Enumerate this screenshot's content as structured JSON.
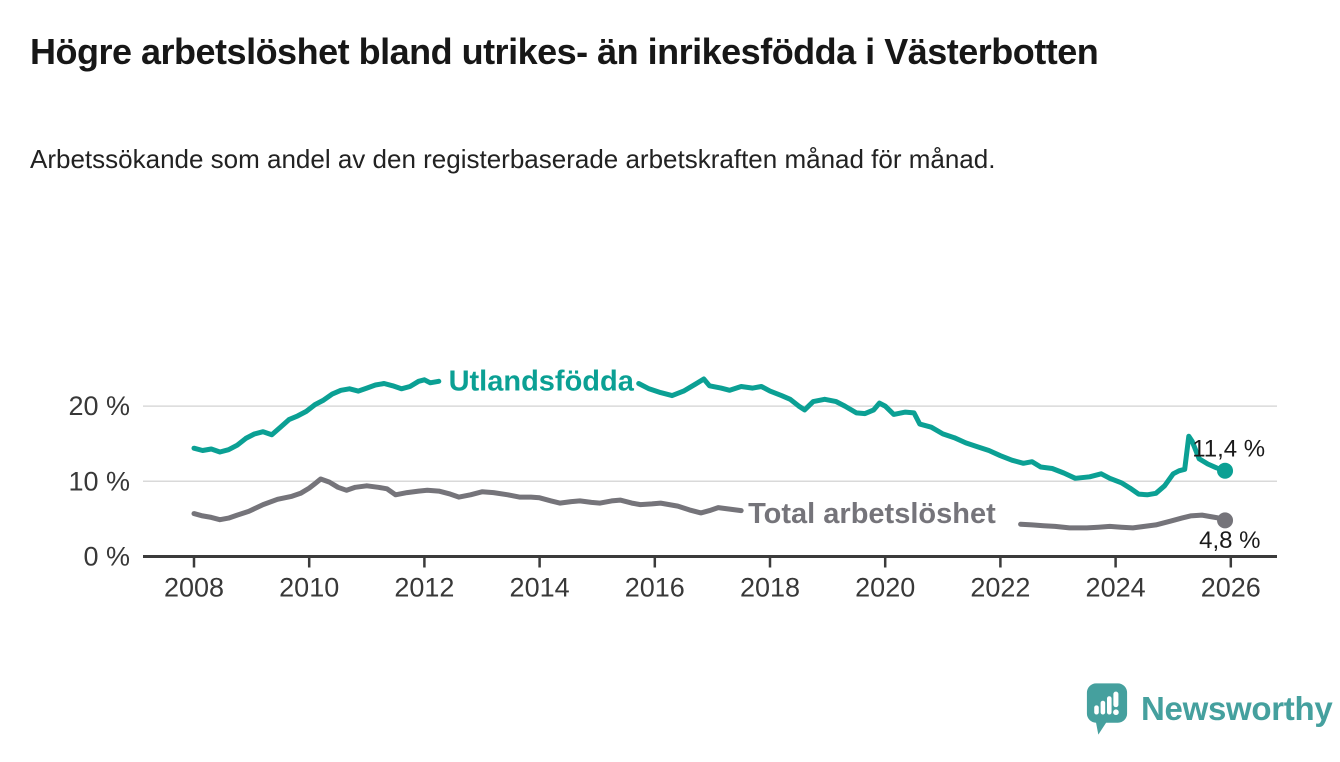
{
  "page": {
    "title": "Högre arbetslöshet bland utrikes- än inrikesfödda i Västerbotten",
    "subtitle": "Arbetssökande som andel av den registerbaserade arbetskraften månad för månad."
  },
  "branding": {
    "logo_text": "Newsworthy",
    "logo_icon": "speech-bubble-bar-chart-icon",
    "logo_color": "#45a09e"
  },
  "colors": {
    "foreign_born_series": "#0ba094",
    "total_series": "#75747a",
    "grid": "#d9d9d9",
    "axis": "#3b3b3b",
    "value_label_text": "#1a1a1a",
    "background": "#ffffff"
  },
  "chart_data": {
    "type": "line",
    "title": "Högre arbetslöshet bland utrikes- än inrikesfödda i Västerbotten",
    "subtitle": "Arbetssökande som andel av den registerbaserade arbetskraften månad för månad.",
    "xlabel": "",
    "ylabel": "",
    "xlim": [
      2007.12,
      2026.82
    ],
    "ylim": [
      0,
      26
    ],
    "grid": "horizontal-only",
    "x_ticks": [
      {
        "value": 2008,
        "label": "2008"
      },
      {
        "value": 2010,
        "label": "2010"
      },
      {
        "value": 2012,
        "label": "2012"
      },
      {
        "value": 2014,
        "label": "2014"
      },
      {
        "value": 2016,
        "label": "2016"
      },
      {
        "value": 2018,
        "label": "2018"
      },
      {
        "value": 2020,
        "label": "2020"
      },
      {
        "value": 2022,
        "label": "2022"
      },
      {
        "value": 2024,
        "label": "2024"
      },
      {
        "value": 2026,
        "label": "2026"
      }
    ],
    "y_ticks": [
      {
        "value": 0,
        "label": "0 %"
      },
      {
        "value": 10,
        "label": "10 %"
      },
      {
        "value": 20,
        "label": "20 %"
      }
    ],
    "series": [
      {
        "name": "Utlandsfödda",
        "color": "#0ba094",
        "end_value": 11.4,
        "end_label": "11,4 %",
        "end_label_anchor": {
          "year": 2025.33,
          "value": 13.3
        },
        "inline_label_anchor": {
          "year": 2012.42,
          "value": 23.4
        },
        "segments": [
          [
            [
              2008.0,
              14.4
            ],
            [
              2008.15,
              14.1
            ],
            [
              2008.3,
              14.3
            ],
            [
              2008.45,
              13.9
            ],
            [
              2008.6,
              14.2
            ],
            [
              2008.75,
              14.8
            ],
            [
              2008.9,
              15.7
            ],
            [
              2009.05,
              16.3
            ],
            [
              2009.2,
              16.6
            ],
            [
              2009.35,
              16.2
            ],
            [
              2009.5,
              17.2
            ],
            [
              2009.65,
              18.2
            ],
            [
              2009.8,
              18.7
            ],
            [
              2009.95,
              19.3
            ],
            [
              2010.1,
              20.2
            ],
            [
              2010.25,
              20.8
            ],
            [
              2010.4,
              21.6
            ],
            [
              2010.55,
              22.1
            ],
            [
              2010.7,
              22.3
            ],
            [
              2010.85,
              22.0
            ],
            [
              2011.0,
              22.4
            ],
            [
              2011.15,
              22.8
            ],
            [
              2011.3,
              23.0
            ],
            [
              2011.45,
              22.7
            ],
            [
              2011.6,
              22.3
            ],
            [
              2011.75,
              22.6
            ],
            [
              2011.9,
              23.3
            ],
            [
              2012.0,
              23.5
            ],
            [
              2012.1,
              23.1
            ],
            [
              2012.25,
              23.3
            ]
          ],
          [
            [
              2015.72,
              23.0
            ],
            [
              2015.9,
              22.3
            ],
            [
              2016.1,
              21.8
            ],
            [
              2016.3,
              21.4
            ],
            [
              2016.5,
              22.0
            ],
            [
              2016.7,
              22.9
            ],
            [
              2016.85,
              23.6
            ],
            [
              2016.95,
              22.7
            ],
            [
              2017.15,
              22.4
            ],
            [
              2017.3,
              22.1
            ],
            [
              2017.5,
              22.6
            ],
            [
              2017.7,
              22.4
            ],
            [
              2017.85,
              22.6
            ],
            [
              2018.0,
              22.0
            ],
            [
              2018.2,
              21.4
            ],
            [
              2018.35,
              20.9
            ],
            [
              2018.5,
              20.0
            ],
            [
              2018.6,
              19.5
            ],
            [
              2018.75,
              20.6
            ],
            [
              2018.95,
              20.9
            ],
            [
              2019.15,
              20.6
            ],
            [
              2019.3,
              20.0
            ],
            [
              2019.5,
              19.1
            ],
            [
              2019.65,
              19.0
            ],
            [
              2019.8,
              19.5
            ],
            [
              2019.9,
              20.4
            ],
            [
              2020.0,
              20.0
            ],
            [
              2020.15,
              18.9
            ],
            [
              2020.35,
              19.2
            ],
            [
              2020.5,
              19.1
            ],
            [
              2020.6,
              17.6
            ],
            [
              2020.8,
              17.2
            ],
            [
              2021.0,
              16.3
            ],
            [
              2021.2,
              15.8
            ],
            [
              2021.4,
              15.1
            ],
            [
              2021.6,
              14.6
            ],
            [
              2021.8,
              14.1
            ],
            [
              2022.0,
              13.4
            ],
            [
              2022.2,
              12.8
            ],
            [
              2022.4,
              12.4
            ],
            [
              2022.55,
              12.6
            ],
            [
              2022.7,
              11.9
            ],
            [
              2022.9,
              11.7
            ],
            [
              2023.1,
              11.1
            ],
            [
              2023.3,
              10.4
            ],
            [
              2023.55,
              10.6
            ],
            [
              2023.75,
              11.0
            ],
            [
              2023.9,
              10.4
            ],
            [
              2024.1,
              9.8
            ],
            [
              2024.25,
              9.1
            ],
            [
              2024.4,
              8.3
            ],
            [
              2024.55,
              8.2
            ],
            [
              2024.7,
              8.4
            ],
            [
              2024.85,
              9.4
            ],
            [
              2025.0,
              11.0
            ],
            [
              2025.1,
              11.4
            ],
            [
              2025.2,
              11.6
            ],
            [
              2025.27,
              16.0
            ],
            [
              2025.33,
              15.3
            ],
            [
              2025.45,
              13.0
            ],
            [
              2025.6,
              12.3
            ],
            [
              2025.75,
              11.8
            ],
            [
              2025.9,
              11.4
            ]
          ]
        ]
      },
      {
        "name": "Total arbetslöshet",
        "color": "#75747a",
        "end_value": 4.8,
        "end_label": "4,8 %",
        "end_label_anchor": {
          "year": 2025.45,
          "value": 1.1
        },
        "inline_label_anchor": {
          "year": 2017.62,
          "value": 5.8
        },
        "segments": [
          [
            [
              2008.0,
              5.7
            ],
            [
              2008.15,
              5.4
            ],
            [
              2008.3,
              5.2
            ],
            [
              2008.45,
              4.9
            ],
            [
              2008.6,
              5.1
            ],
            [
              2008.75,
              5.5
            ],
            [
              2008.95,
              6.0
            ],
            [
              2009.2,
              6.9
            ],
            [
              2009.45,
              7.6
            ],
            [
              2009.7,
              8.0
            ],
            [
              2009.85,
              8.4
            ],
            [
              2010.0,
              9.1
            ],
            [
              2010.1,
              9.7
            ],
            [
              2010.2,
              10.3
            ],
            [
              2010.35,
              9.9
            ],
            [
              2010.5,
              9.2
            ],
            [
              2010.65,
              8.8
            ],
            [
              2010.8,
              9.2
            ],
            [
              2011.0,
              9.4
            ],
            [
              2011.2,
              9.2
            ],
            [
              2011.35,
              9.0
            ],
            [
              2011.5,
              8.2
            ],
            [
              2011.7,
              8.5
            ],
            [
              2011.9,
              8.7
            ],
            [
              2012.05,
              8.8
            ],
            [
              2012.25,
              8.7
            ],
            [
              2012.45,
              8.3
            ],
            [
              2012.6,
              7.9
            ],
            [
              2012.8,
              8.2
            ],
            [
              2013.0,
              8.6
            ],
            [
              2013.2,
              8.5
            ],
            [
              2013.45,
              8.2
            ],
            [
              2013.65,
              7.9
            ],
            [
              2013.85,
              7.9
            ],
            [
              2014.0,
              7.8
            ],
            [
              2014.2,
              7.4
            ],
            [
              2014.35,
              7.1
            ],
            [
              2014.55,
              7.3
            ],
            [
              2014.7,
              7.4
            ],
            [
              2014.9,
              7.2
            ],
            [
              2015.05,
              7.1
            ],
            [
              2015.25,
              7.4
            ],
            [
              2015.4,
              7.5
            ],
            [
              2015.6,
              7.1
            ],
            [
              2015.75,
              6.9
            ],
            [
              2015.95,
              7.0
            ],
            [
              2016.1,
              7.1
            ],
            [
              2016.25,
              6.9
            ],
            [
              2016.4,
              6.7
            ],
            [
              2016.6,
              6.2
            ],
            [
              2016.8,
              5.8
            ],
            [
              2016.95,
              6.1
            ],
            [
              2017.1,
              6.5
            ],
            [
              2017.3,
              6.3
            ],
            [
              2017.5,
              6.1
            ]
          ],
          [
            [
              2022.35,
              4.3
            ],
            [
              2022.55,
              4.2
            ],
            [
              2022.75,
              4.1
            ],
            [
              2022.95,
              4.0
            ],
            [
              2023.2,
              3.8
            ],
            [
              2023.5,
              3.8
            ],
            [
              2023.7,
              3.9
            ],
            [
              2023.9,
              4.0
            ],
            [
              2024.1,
              3.9
            ],
            [
              2024.3,
              3.8
            ],
            [
              2024.5,
              4.0
            ],
            [
              2024.7,
              4.2
            ],
            [
              2024.95,
              4.7
            ],
            [
              2025.15,
              5.1
            ],
            [
              2025.3,
              5.4
            ],
            [
              2025.5,
              5.5
            ],
            [
              2025.65,
              5.3
            ],
            [
              2025.8,
              5.1
            ],
            [
              2025.9,
              4.8
            ]
          ]
        ]
      }
    ]
  }
}
